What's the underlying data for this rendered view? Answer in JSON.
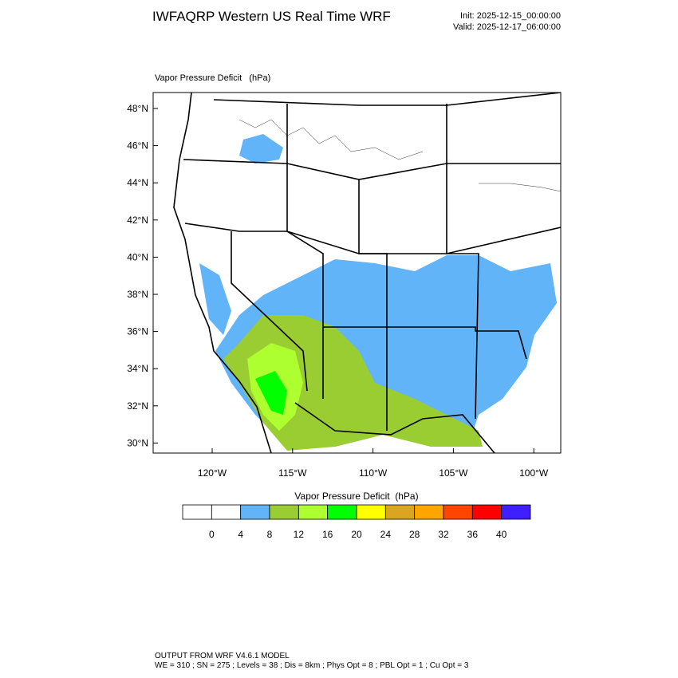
{
  "header": {
    "title": "IWFAQRP Western US Real Time WRF",
    "init": "Init: 2025-12-15_00:00:00",
    "valid": "Valid: 2025-12-17_06:00:00"
  },
  "map": {
    "field_label": "Vapor Pressure Deficit   (hPa)",
    "lat_ticks": [
      "48°N",
      "46°N",
      "44°N",
      "42°N",
      "40°N",
      "38°N",
      "36°N",
      "34°N",
      "32°N",
      "30°N"
    ],
    "lon_ticks": [
      "120°W",
      "115°W",
      "110°W",
      "105°W",
      "100°W"
    ]
  },
  "colorbar": {
    "title": "Vapor Pressure Deficit  (hPa)",
    "levels": [
      0,
      4,
      8,
      12,
      16,
      20,
      24,
      28,
      32,
      36,
      40
    ],
    "colors": [
      "#ffffff",
      "#ffffff",
      "#62b4f8",
      "#9acd32",
      "#adff2f",
      "#00ff00",
      "#ffff00",
      "#daa520",
      "#ffa500",
      "#ff4500",
      "#ff0000",
      "#3f1fff"
    ]
  },
  "footer": {
    "model": "OUTPUT FROM WRF V4.6.1 MODEL",
    "config": "WE = 310 ; SN = 275 ; Levels = 38 ; Dis = 8km ; Phys Opt = 8 ; PBL Opt = 1 ; Cu Opt = 3"
  }
}
